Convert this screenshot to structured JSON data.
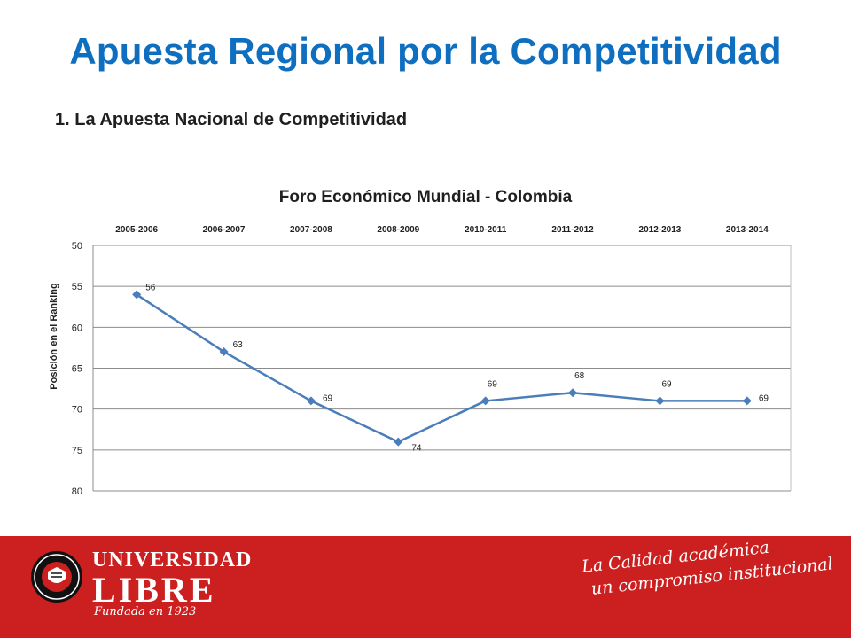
{
  "slide": {
    "title": "Apuesta Regional por la Competitividad",
    "subtitle": "1.  La Apuesta Nacional de Competitividad"
  },
  "chart_data": {
    "type": "line",
    "title": "Foro Económico Mundial - Colombia",
    "xlabel": "",
    "ylabel": "Posición en el Ranking",
    "categories": [
      "2005-2006",
      "2006-2007",
      "2007-2008",
      "2008-2009",
      "2010-2011",
      "2011-2012",
      "2012-2013",
      "2013-2014"
    ],
    "series": [
      {
        "values": [
          56,
          63,
          69,
          74,
          69,
          68,
          69,
          69
        ],
        "color": "#4a7ebb"
      }
    ],
    "data_labels": [
      "56",
      "63",
      "69",
      "74",
      "69",
      "68",
      "69",
      "69"
    ],
    "ylim": [
      50,
      80
    ],
    "y_reversed": true,
    "yticks": [
      50,
      55,
      60,
      65,
      70,
      75,
      80
    ],
    "x_axis_position": "top",
    "grid": true,
    "legend": "none"
  },
  "footer": {
    "university_line1": "UNIVERSIDAD",
    "university_line2": "LIBRE",
    "founded": "Fundada en 1923",
    "slogan_line1": "La Calidad académica",
    "slogan_line2": "un compromiso institucional",
    "background_color": "#cc1f1f"
  }
}
